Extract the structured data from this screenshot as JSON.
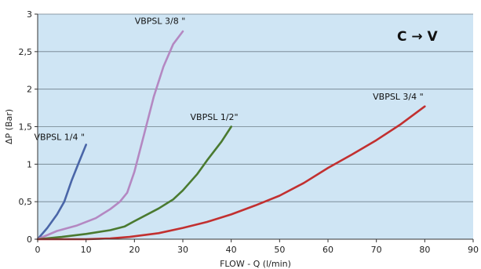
{
  "chart_data": {
    "type": "line",
    "title": "",
    "xlabel": "FLOW - Q (l/min)",
    "ylabel": "ΔP (Bar)",
    "xlim": [
      0,
      90
    ],
    "ylim": [
      0,
      3
    ],
    "x_ticks": [
      {
        "value": 0,
        "label": "0"
      },
      {
        "value": 10,
        "label": "10"
      },
      {
        "value": 20,
        "label": "20"
      },
      {
        "value": 30,
        "label": "30"
      },
      {
        "value": 40,
        "label": "40"
      },
      {
        "value": 50,
        "label": "50"
      },
      {
        "value": 60,
        "label": "60"
      },
      {
        "value": 70,
        "label": "70"
      },
      {
        "value": 80,
        "label": "80"
      },
      {
        "value": 90,
        "label": "90"
      }
    ],
    "y_ticks": [
      {
        "value": 0,
        "label": "0"
      },
      {
        "value": 0.5,
        "label": "0,5"
      },
      {
        "value": 1,
        "label": "1"
      },
      {
        "value": 1.5,
        "label": "1,5"
      },
      {
        "value": 2,
        "label": "2"
      },
      {
        "value": 2.5,
        "label": "2,5"
      },
      {
        "value": 3,
        "label": "3"
      }
    ],
    "grid": "horizontal",
    "background_color": "#cfe5f4",
    "annotation": "C → V",
    "series": [
      {
        "name": "VBPSL 1/4 \"",
        "color": "#4a66a8",
        "label_at": [
          4.5,
          1.32
        ],
        "points": [
          [
            0,
            0
          ],
          [
            2,
            0.15
          ],
          [
            4,
            0.33
          ],
          [
            5.5,
            0.5
          ],
          [
            7,
            0.78
          ],
          [
            8.5,
            1.02
          ],
          [
            10,
            1.26
          ]
        ]
      },
      {
        "name": "VBPSL 3/8 \"",
        "color": "#b488c2",
        "label_at": [
          25.3,
          2.87
        ],
        "points": [
          [
            0,
            0
          ],
          [
            4,
            0.11
          ],
          [
            8,
            0.18
          ],
          [
            12,
            0.28
          ],
          [
            15,
            0.4
          ],
          [
            17,
            0.5
          ],
          [
            18.5,
            0.62
          ],
          [
            20,
            0.9
          ],
          [
            22,
            1.4
          ],
          [
            24,
            1.9
          ],
          [
            26,
            2.3
          ],
          [
            28,
            2.6
          ],
          [
            30,
            2.77
          ]
        ]
      },
      {
        "name": "VBPSL 1/2\"",
        "color": "#4a7a30",
        "label_at": [
          36.5,
          1.59
        ],
        "points": [
          [
            0,
            0
          ],
          [
            5,
            0.03
          ],
          [
            10,
            0.07
          ],
          [
            15,
            0.12
          ],
          [
            18,
            0.17
          ],
          [
            20,
            0.24
          ],
          [
            25,
            0.41
          ],
          [
            28,
            0.53
          ],
          [
            30,
            0.65
          ],
          [
            33,
            0.87
          ],
          [
            35,
            1.05
          ],
          [
            38,
            1.3
          ],
          [
            40,
            1.5
          ]
        ]
      },
      {
        "name": "VBPSL 3/4 \"",
        "color": "#c23030",
        "label_at": [
          74.5,
          1.86
        ],
        "points": [
          [
            0,
            0
          ],
          [
            10,
            0
          ],
          [
            15,
            0.01
          ],
          [
            19,
            0.03
          ],
          [
            25,
            0.08
          ],
          [
            30,
            0.15
          ],
          [
            35,
            0.23
          ],
          [
            40,
            0.33
          ],
          [
            45,
            0.45
          ],
          [
            50,
            0.58
          ],
          [
            55,
            0.75
          ],
          [
            60,
            0.95
          ],
          [
            65,
            1.13
          ],
          [
            70,
            1.32
          ],
          [
            75,
            1.53
          ],
          [
            80,
            1.77
          ]
        ]
      }
    ]
  }
}
